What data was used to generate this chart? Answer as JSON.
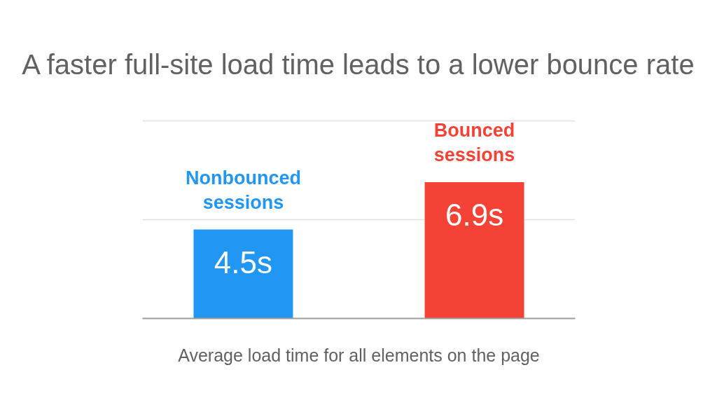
{
  "chart_data": {
    "type": "bar",
    "title": "A faster full-site load time leads to a lower bounce rate",
    "xlabel": "Average load time for all elements on the page",
    "categories": [
      "Nonbounced sessions",
      "Bounced sessions"
    ],
    "values": [
      4.5,
      6.9
    ],
    "colors": [
      "#2196f3",
      "#f44336"
    ],
    "value_labels": [
      "4.5s",
      "6.9s"
    ],
    "ylim": [
      0,
      10
    ],
    "yticks": [
      {
        "value": 0,
        "label": null
      },
      {
        "value": 5,
        "label": null
      },
      {
        "value": 10,
        "label": null
      }
    ],
    "grid": "y",
    "tick_labels": "x"
  }
}
